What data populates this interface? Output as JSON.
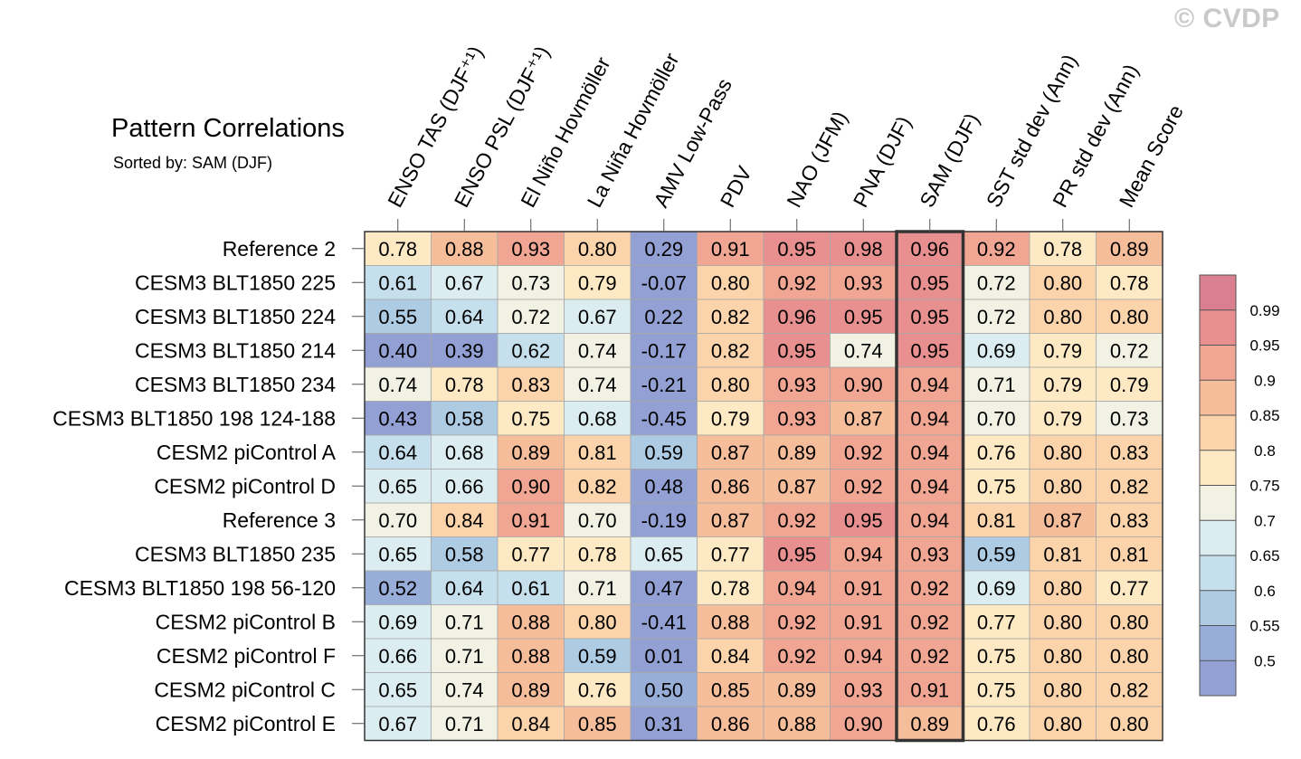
{
  "watermark": "© CVDP",
  "chart_data": {
    "type": "heatmap",
    "title": "Pattern Correlations",
    "subtitle": "Sorted by: SAM (DJF)",
    "columns": [
      "ENSO TAS (DJF⁺¹)",
      "ENSO PSL (DJF⁺¹)",
      "El Niño Hovmöller",
      "La Niña Hovmöller",
      "AMV Low-Pass",
      "PDV",
      "NAO (JFM)",
      "PNA (DJF)",
      "SAM (DJF)",
      "SST std dev (Ann)",
      "PR std dev (Ann)",
      "Mean Score"
    ],
    "highlight_column": "SAM (DJF)",
    "rows": [
      {
        "label": "Reference 2",
        "values": [
          "0.78",
          "0.88",
          "0.93",
          "0.80",
          "0.29",
          "0.91",
          "0.95",
          "0.98",
          "0.96",
          "0.92",
          "0.78",
          "0.89"
        ]
      },
      {
        "label": "CESM3 BLT1850 225",
        "values": [
          "0.61",
          "0.67",
          "0.73",
          "0.79",
          "-0.07",
          "0.80",
          "0.92",
          "0.93",
          "0.95",
          "0.72",
          "0.80",
          "0.78"
        ]
      },
      {
        "label": "CESM3 BLT1850 224",
        "values": [
          "0.55",
          "0.64",
          "0.72",
          "0.67",
          "0.22",
          "0.82",
          "0.96",
          "0.95",
          "0.95",
          "0.72",
          "0.80",
          "0.80"
        ]
      },
      {
        "label": "CESM3 BLT1850 214",
        "values": [
          "0.40",
          "0.39",
          "0.62",
          "0.74",
          "-0.17",
          "0.82",
          "0.95",
          "0.74",
          "0.95",
          "0.69",
          "0.79",
          "0.72"
        ]
      },
      {
        "label": "CESM3 BLT1850 234",
        "values": [
          "0.74",
          "0.78",
          "0.83",
          "0.74",
          "-0.21",
          "0.80",
          "0.93",
          "0.90",
          "0.94",
          "0.71",
          "0.79",
          "0.79"
        ]
      },
      {
        "label": "CESM3 BLT1850 198 124-188",
        "values": [
          "0.43",
          "0.58",
          "0.75",
          "0.68",
          "-0.45",
          "0.79",
          "0.93",
          "0.87",
          "0.94",
          "0.70",
          "0.79",
          "0.73"
        ]
      },
      {
        "label": "CESM2 piControl A",
        "values": [
          "0.64",
          "0.68",
          "0.89",
          "0.81",
          "0.59",
          "0.87",
          "0.89",
          "0.92",
          "0.94",
          "0.76",
          "0.80",
          "0.83"
        ]
      },
      {
        "label": "CESM2 piControl D",
        "values": [
          "0.65",
          "0.66",
          "0.90",
          "0.82",
          "0.48",
          "0.86",
          "0.87",
          "0.92",
          "0.94",
          "0.75",
          "0.80",
          "0.82"
        ]
      },
      {
        "label": "Reference 3",
        "values": [
          "0.70",
          "0.84",
          "0.91",
          "0.70",
          "-0.19",
          "0.87",
          "0.92",
          "0.95",
          "0.94",
          "0.81",
          "0.87",
          "0.83"
        ]
      },
      {
        "label": "CESM3 BLT1850 235",
        "values": [
          "0.65",
          "0.58",
          "0.77",
          "0.78",
          "0.65",
          "0.77",
          "0.95",
          "0.94",
          "0.93",
          "0.59",
          "0.81",
          "0.81"
        ]
      },
      {
        "label": "CESM3 BLT1850 198 56-120",
        "values": [
          "0.52",
          "0.64",
          "0.61",
          "0.71",
          "0.47",
          "0.78",
          "0.94",
          "0.91",
          "0.92",
          "0.69",
          "0.80",
          "0.77"
        ]
      },
      {
        "label": "CESM2 piControl B",
        "values": [
          "0.69",
          "0.71",
          "0.88",
          "0.80",
          "-0.41",
          "0.88",
          "0.92",
          "0.91",
          "0.92",
          "0.77",
          "0.80",
          "0.80"
        ]
      },
      {
        "label": "CESM2 piControl F",
        "values": [
          "0.66",
          "0.71",
          "0.88",
          "0.59",
          "0.01",
          "0.84",
          "0.92",
          "0.94",
          "0.92",
          "0.75",
          "0.80",
          "0.80"
        ]
      },
      {
        "label": "CESM2 piControl C",
        "values": [
          "0.65",
          "0.74",
          "0.89",
          "0.76",
          "0.50",
          "0.85",
          "0.89",
          "0.93",
          "0.91",
          "0.75",
          "0.80",
          "0.82"
        ]
      },
      {
        "label": "CESM2 piControl E",
        "values": [
          "0.67",
          "0.71",
          "0.84",
          "0.85",
          "0.31",
          "0.86",
          "0.88",
          "0.90",
          "0.89",
          "0.76",
          "0.80",
          "0.80"
        ]
      }
    ],
    "colorbar": {
      "levels": [
        0.99,
        0.95,
        0.9,
        0.85,
        0.8,
        0.75,
        0.7,
        0.65,
        0.6,
        0.55,
        0.5
      ],
      "labels": [
        "0.99",
        "0.95",
        "0.9",
        "0.85",
        "0.8",
        "0.75",
        "0.7",
        "0.65",
        "0.6",
        "0.55",
        "0.5"
      ],
      "colors_high_to_low": [
        "#d97f8f",
        "#e7908f",
        "#f0a692",
        "#f6bd9b",
        "#fbd4ab",
        "#fde9c4",
        "#f1f1e4",
        "#dcedf2",
        "#c6dfec",
        "#aecbe4",
        "#98aed8",
        "#92a0d3"
      ]
    }
  }
}
